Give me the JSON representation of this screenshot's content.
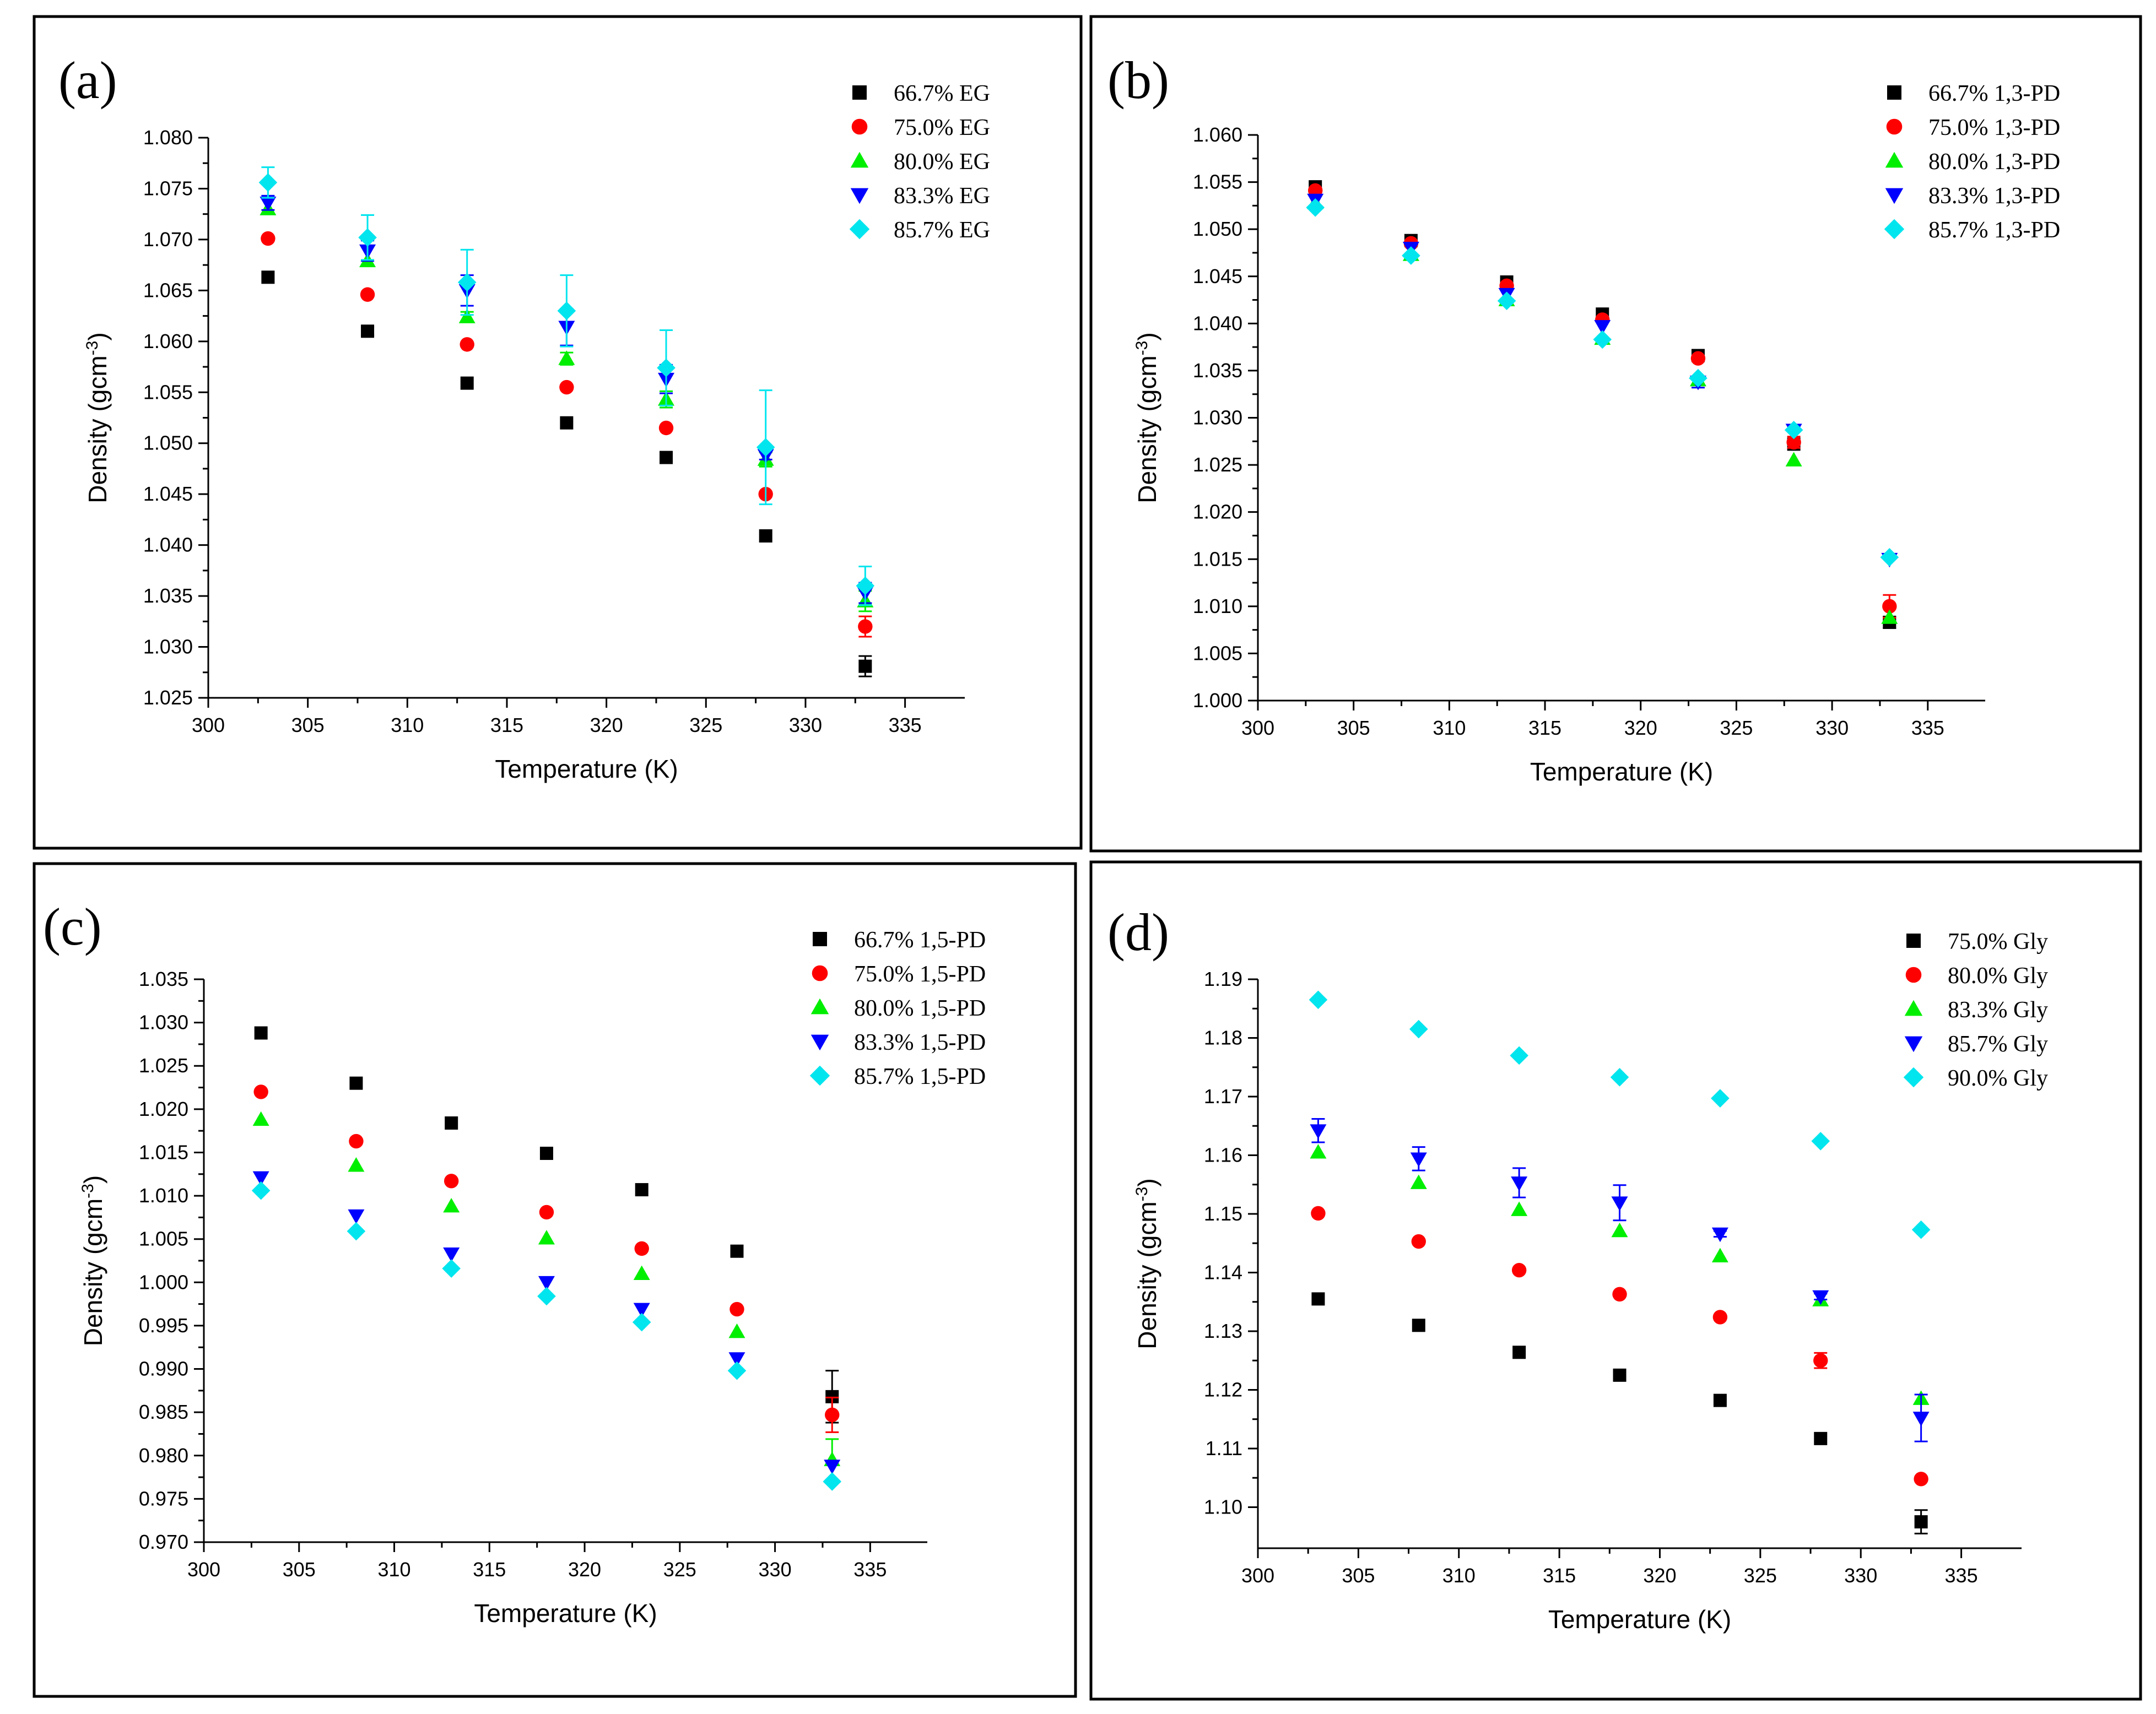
{
  "chart_data": [
    {
      "type": "scatter",
      "panel_label": "(a)",
      "xlabel": "Temperature (K)",
      "ylabel_main": "Density (gcm",
      "ylabel_sup": "-3",
      "ylabel_end": ")",
      "xlim": [
        300,
        338
      ],
      "ylim": [
        1.025,
        1.08
      ],
      "xticks": [
        "300",
        "305",
        "310",
        "315",
        "320",
        "325",
        "330",
        "335"
      ],
      "yticks": [
        "1.025",
        "1.030",
        "1.035",
        "1.040",
        "1.045",
        "1.050",
        "1.055",
        "1.060",
        "1.065",
        "1.070",
        "1.075",
        "1.080"
      ],
      "x": [
        303,
        308,
        313,
        318,
        323,
        328,
        333
      ],
      "series": [
        {
          "name": "66.7% EG",
          "marker": "square",
          "color": "#000000",
          "values": [
            1.0663,
            1.061,
            1.0559,
            1.052,
            1.0486,
            1.0409,
            1.0281
          ],
          "errors": [
            0,
            0.0004,
            0,
            0,
            0,
            0,
            0.001
          ]
        },
        {
          "name": "75.0% EG",
          "marker": "circle",
          "color": "#ff0000",
          "values": [
            1.0701,
            1.0646,
            1.0597,
            1.0555,
            1.0515,
            1.045,
            1.032
          ],
          "errors": [
            0,
            0,
            0,
            0,
            0,
            0,
            0.001
          ]
        },
        {
          "name": "80.0% EG",
          "marker": "triangle-up",
          "color": "#00ee00",
          "values": [
            1.073,
            1.0679,
            1.0624,
            1.0583,
            1.0543,
            1.0484,
            1.0345
          ],
          "errors": [
            0,
            0,
            0.0005,
            0.0006,
            0.0008,
            0.0007,
            0.001
          ]
        },
        {
          "name": "83.3% EG",
          "marker": "triangle-down",
          "color": "#0000ff",
          "values": [
            1.0736,
            1.0689,
            1.065,
            1.0614,
            1.0563,
            1.0488,
            1.0353
          ],
          "errors": [
            0.0007,
            0.001,
            0.0015,
            0.0018,
            0.0014,
            0.0004,
            0.001
          ]
        },
        {
          "name": "85.7% EG",
          "marker": "diamond",
          "color": "#00e5ee",
          "values": [
            1.0756,
            1.0702,
            1.0658,
            1.063,
            1.0574,
            1.0496,
            1.036
          ],
          "errors": [
            0.0015,
            0.0022,
            0.0032,
            0.0035,
            0.0037,
            0.0056,
            0.0019
          ]
        }
      ]
    },
    {
      "type": "scatter",
      "panel_label": "(b)",
      "xlabel": "Temperature (K)",
      "ylabel_main": "Density (gcm",
      "ylabel_sup": "-3",
      "ylabel_end": ")",
      "xlim": [
        300,
        338
      ],
      "ylim": [
        1.0,
        1.06
      ],
      "xticks": [
        "300",
        "305",
        "310",
        "315",
        "320",
        "325",
        "330",
        "335"
      ],
      "yticks": [
        "1.000",
        "1.005",
        "1.010",
        "1.015",
        "1.020",
        "1.025",
        "1.030",
        "1.035",
        "1.040",
        "1.045",
        "1.050",
        "1.055",
        "1.060"
      ],
      "x": [
        303,
        308,
        313,
        318,
        323,
        328,
        333
      ],
      "series": [
        {
          "name": "66.7% 1,3-PD",
          "marker": "square",
          "color": "#000000",
          "values": [
            1.0545,
            1.0488,
            1.0444,
            1.041,
            1.0366,
            1.0272,
            1.0083
          ],
          "errors": [
            0,
            0,
            0,
            0,
            0,
            0,
            0.0006
          ]
        },
        {
          "name": "75.0% 1,3-PD",
          "marker": "circle",
          "color": "#ff0000",
          "values": [
            1.0541,
            1.0485,
            1.044,
            1.0404,
            1.0363,
            1.0274,
            1.01
          ],
          "errors": [
            0,
            0,
            0,
            0,
            0,
            0.0006,
            0.0012
          ]
        },
        {
          "name": "80.0% 1,3-PD",
          "marker": "triangle-up",
          "color": "#00ee00",
          "values": [
            1.0528,
            1.0473,
            1.0425,
            1.0384,
            1.034,
            1.0255,
            1.0088
          ],
          "errors": [
            0,
            0,
            0,
            0,
            0,
            0,
            0
          ]
        },
        {
          "name": "83.3% 1,3-PD",
          "marker": "triangle-down",
          "color": "#0000ff",
          "values": [
            1.0531,
            1.048,
            1.0431,
            1.0397,
            1.0338,
            1.0287,
            1.015
          ],
          "errors": [
            0,
            0,
            0,
            0,
            0.0006,
            0,
            0
          ]
        },
        {
          "name": "85.7% 1,3-PD",
          "marker": "diamond",
          "color": "#00e5ee",
          "values": [
            1.0523,
            1.0472,
            1.0424,
            1.0383,
            1.0342,
            1.0287,
            1.0152
          ],
          "errors": [
            0,
            0,
            0,
            0,
            0,
            0,
            0
          ]
        }
      ]
    },
    {
      "type": "scatter",
      "panel_label": "(c)",
      "xlabel": "Temperature (K)",
      "ylabel_main": "Density (gcm",
      "ylabel_sup": "-3",
      "ylabel_end": ")",
      "xlim": [
        300,
        338
      ],
      "ylim": [
        0.97,
        1.035
      ],
      "xticks": [
        "300",
        "305",
        "310",
        "315",
        "320",
        "325",
        "330",
        "335"
      ],
      "yticks": [
        "0.970",
        "0.975",
        "0.980",
        "0.985",
        "0.990",
        "0.995",
        "1.000",
        "1.005",
        "1.010",
        "1.015",
        "1.020",
        "1.025",
        "1.030",
        "1.035"
      ],
      "x": [
        303,
        308,
        313,
        318,
        323,
        328,
        333
      ],
      "series": [
        {
          "name": "66.7% 1,5-PD",
          "marker": "square",
          "color": "#000000",
          "values": [
            1.0288,
            1.023,
            1.0184,
            1.0149,
            1.0107,
            1.0036,
            0.9868
          ],
          "errors": [
            0,
            0,
            0,
            0,
            0,
            0,
            0.003
          ]
        },
        {
          "name": "75.0% 1,5-PD",
          "marker": "circle",
          "color": "#ff0000",
          "values": [
            1.022,
            1.0163,
            1.0117,
            1.0081,
            1.0039,
            0.9969,
            0.9847
          ],
          "errors": [
            0,
            0,
            0,
            0,
            0,
            0,
            0.002
          ]
        },
        {
          "name": "80.0% 1,5-PD",
          "marker": "triangle-up",
          "color": "#00ee00",
          "values": [
            1.0188,
            1.0135,
            1.0088,
            1.0051,
            1.001,
            0.9943,
            0.9795
          ],
          "errors": [
            0,
            0,
            0,
            0,
            0,
            0,
            0.0024
          ]
        },
        {
          "name": "83.3% 1,5-PD",
          "marker": "triangle-down",
          "color": "#0000ff",
          "values": [
            1.0121,
            1.0077,
            1.0033,
            1.0,
            0.9969,
            0.9912,
            0.9788
          ],
          "errors": [
            0,
            0,
            0,
            0,
            0,
            0,
            0
          ]
        },
        {
          "name": "85.7% 1,5-PD",
          "marker": "diamond",
          "color": "#00e5ee",
          "values": [
            1.0106,
            1.0059,
            1.0016,
            0.9984,
            0.9954,
            0.9898,
            0.977
          ],
          "errors": [
            0,
            0,
            0,
            0,
            0,
            0,
            0
          ]
        }
      ]
    },
    {
      "type": "scatter",
      "panel_label": "(d)",
      "xlabel": "Temperature (K)",
      "ylabel_main": "Density (gcm",
      "ylabel_sup": "-3",
      "ylabel_end": ")",
      "xlim": [
        300,
        338
      ],
      "ylim": [
        1.093,
        1.19
      ],
      "xticks": [
        "300",
        "305",
        "310",
        "315",
        "320",
        "325",
        "330",
        "335"
      ],
      "yticks": [
        "1.10",
        "1.11",
        "1.12",
        "1.13",
        "1.14",
        "1.15",
        "1.16",
        "1.17",
        "1.18",
        "1.19"
      ],
      "x": [
        303,
        308,
        313,
        318,
        323,
        328,
        333
      ],
      "series": [
        {
          "name": "75.0% Gly",
          "marker": "square",
          "color": "#000000",
          "values": [
            1.1355,
            1.131,
            1.1264,
            1.1225,
            1.1182,
            1.1117,
            1.0975
          ],
          "errors": [
            0,
            0,
            0,
            0,
            0,
            0,
            0.002
          ]
        },
        {
          "name": "80.0% Gly",
          "marker": "circle",
          "color": "#ff0000",
          "values": [
            1.1501,
            1.1453,
            1.1404,
            1.1363,
            1.1324,
            1.125,
            1.1048
          ],
          "errors": [
            0,
            0,
            0,
            0,
            0,
            0.0013,
            0
          ]
        },
        {
          "name": "83.3% Gly",
          "marker": "triangle-up",
          "color": "#00ee00",
          "values": [
            1.1605,
            1.1553,
            1.1507,
            1.1471,
            1.1428,
            1.1353,
            1.1185
          ],
          "errors": [
            0,
            0,
            0,
            0,
            0,
            0,
            0
          ]
        },
        {
          "name": "85.7% Gly",
          "marker": "triangle-down",
          "color": "#0000ff",
          "values": [
            1.1642,
            1.1594,
            1.1553,
            1.1519,
            1.1466,
            1.1359,
            1.1152
          ],
          "errors": [
            0.002,
            0.002,
            0.0025,
            0.003,
            0.0005,
            0.0005,
            0.004
          ]
        },
        {
          "name": "90.0% Gly",
          "marker": "diamond",
          "color": "#00e5ee",
          "values": [
            1.1865,
            1.1815,
            1.177,
            1.1733,
            1.1697,
            1.1624,
            1.1473
          ],
          "errors": [
            0,
            0,
            0,
            0,
            0,
            0,
            0
          ]
        }
      ]
    }
  ]
}
